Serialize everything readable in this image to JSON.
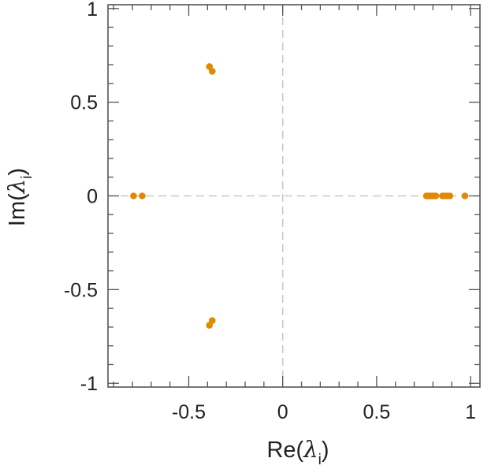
{
  "chart_data": {
    "type": "scatter",
    "title": "",
    "xlabel": {
      "prefix": "Re(",
      "symbol": "λ",
      "subscript": "i",
      "suffix": ")"
    },
    "ylabel": {
      "prefix": "Im(",
      "symbol": "λ",
      "subscript": "i",
      "suffix": ")"
    },
    "xlim": [
      -0.93,
      1.05
    ],
    "ylim": [
      -1.02,
      1.02
    ],
    "x_ticks": [
      {
        "value": -0.5,
        "label": "-0.5"
      },
      {
        "value": 0,
        "label": "0"
      },
      {
        "value": 0.5,
        "label": "0.5"
      },
      {
        "value": 1,
        "label": "1"
      }
    ],
    "y_ticks": [
      {
        "value": 1,
        "label": "1"
      },
      {
        "value": 0.5,
        "label": "0.5"
      },
      {
        "value": 0,
        "label": "0"
      },
      {
        "value": -0.5,
        "label": "-0.5"
      },
      {
        "value": -1,
        "label": "-1"
      }
    ],
    "minor_tick_step": 0.1,
    "reference_lines": [
      "x=0",
      "y=0"
    ],
    "grid": false,
    "legend": "none",
    "marker_color": "#e08a00",
    "reference_line_color": "#c8c8c8",
    "series": [
      {
        "points": [
          {
            "x": -0.794,
            "y": 0
          },
          {
            "x": -0.748,
            "y": 0
          },
          {
            "x": -0.39,
            "y": 0.69
          },
          {
            "x": -0.375,
            "y": 0.665
          },
          {
            "x": -0.39,
            "y": -0.69
          },
          {
            "x": -0.375,
            "y": -0.665
          },
          {
            "x": 0.765,
            "y": 0
          },
          {
            "x": 0.775,
            "y": 0
          },
          {
            "x": 0.785,
            "y": 0
          },
          {
            "x": 0.795,
            "y": 0
          },
          {
            "x": 0.805,
            "y": 0
          },
          {
            "x": 0.815,
            "y": 0
          },
          {
            "x": 0.85,
            "y": 0
          },
          {
            "x": 0.86,
            "y": 0
          },
          {
            "x": 0.875,
            "y": 0
          },
          {
            "x": 0.89,
            "y": 0
          },
          {
            "x": 0.97,
            "y": 0
          }
        ]
      }
    ]
  }
}
